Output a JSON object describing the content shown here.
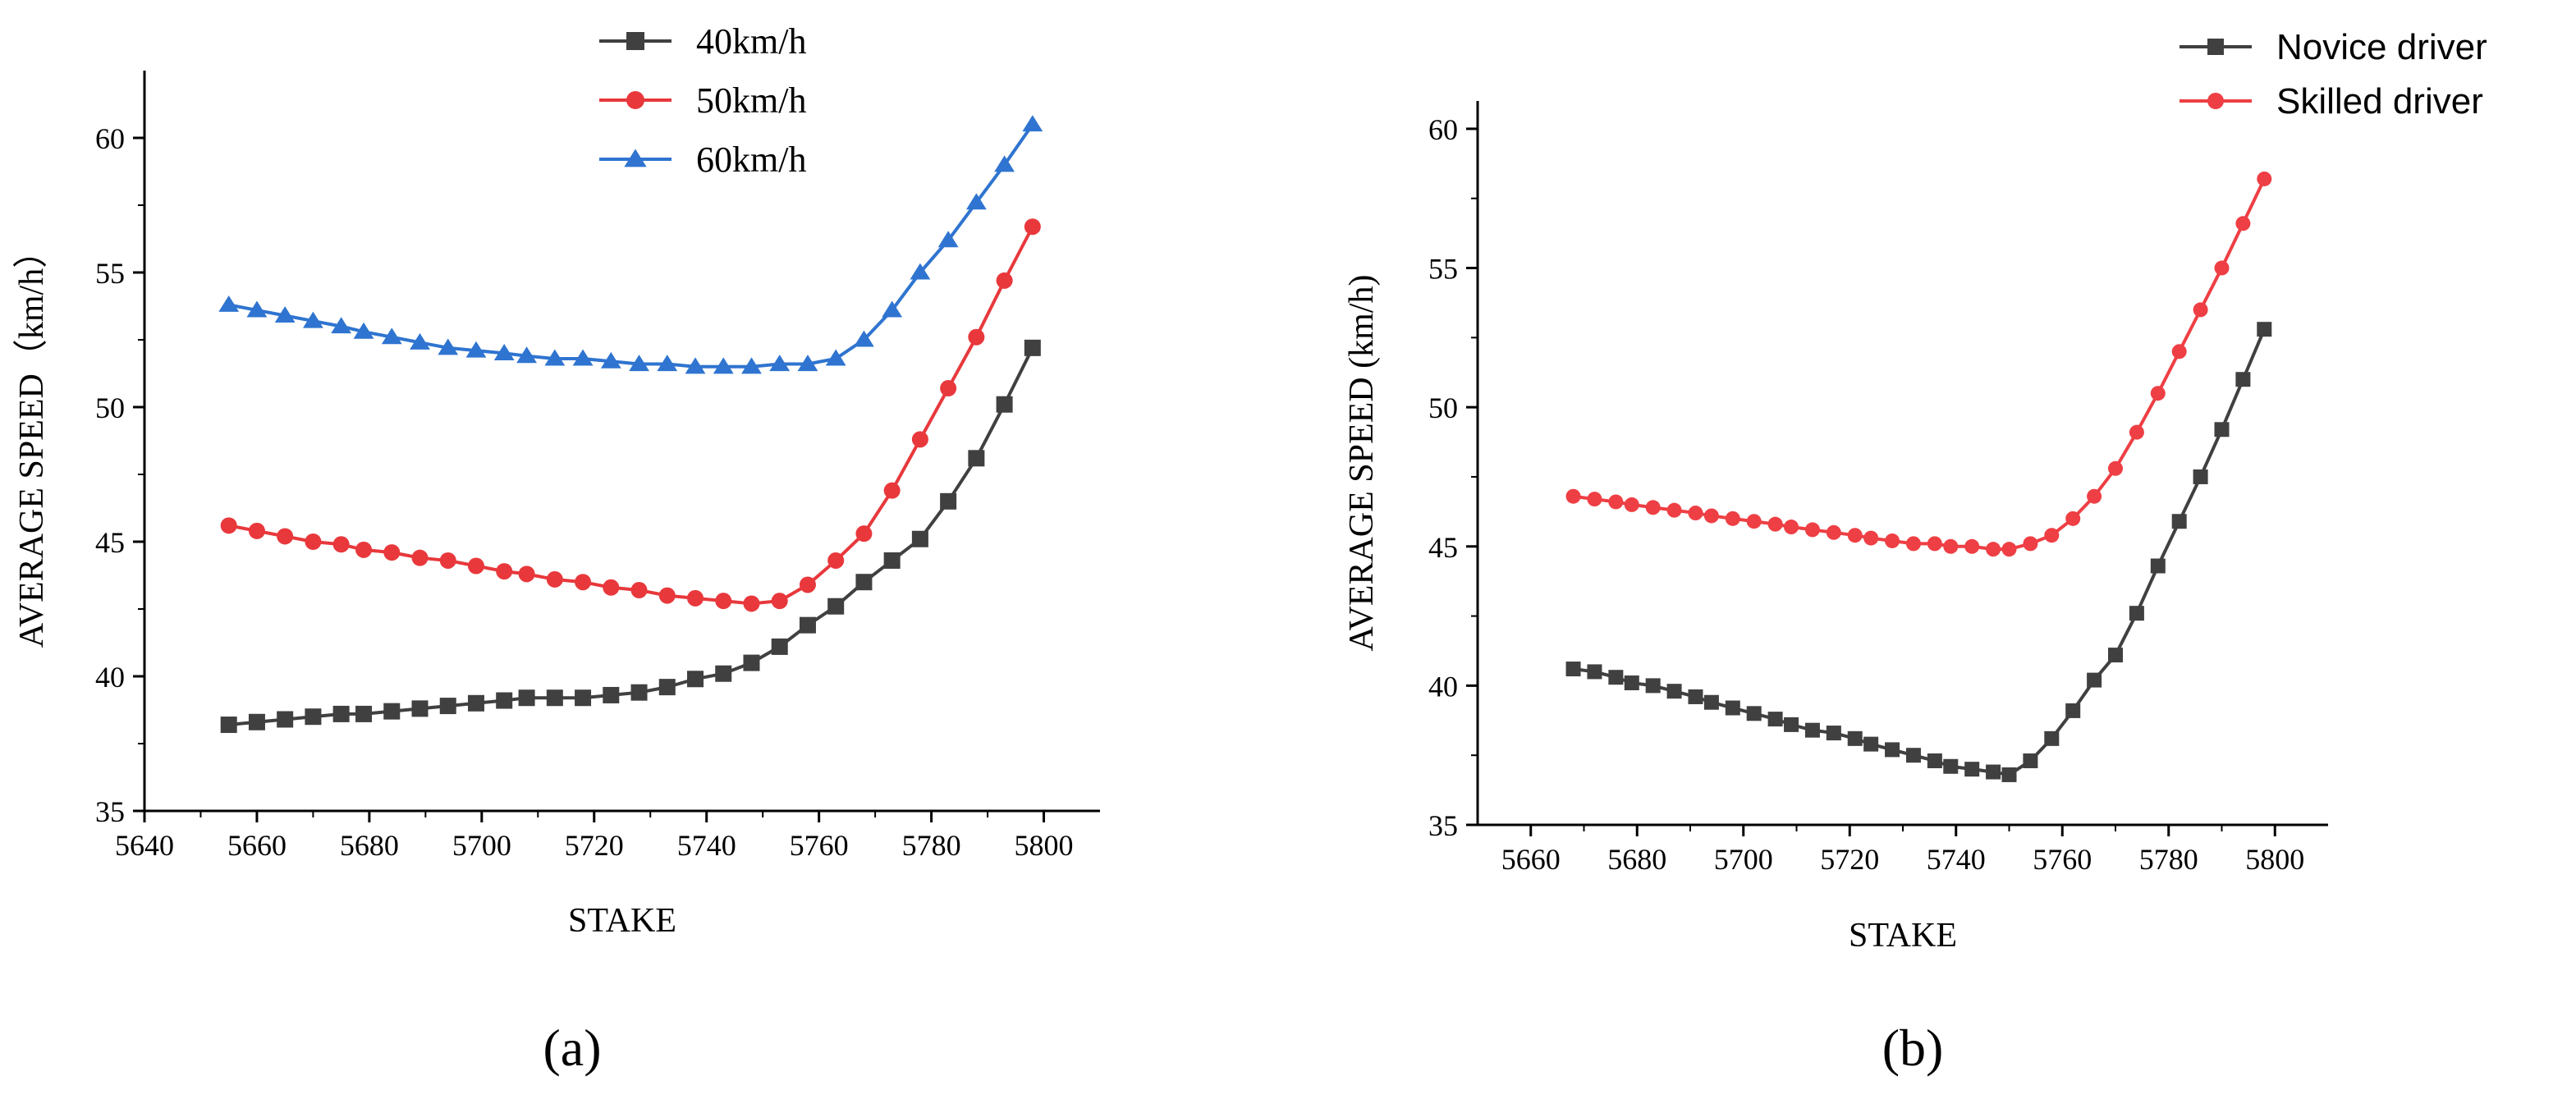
{
  "chart_data": [
    {
      "id": "a",
      "type": "line",
      "panel_label": "(a)",
      "xlabel": "STAKE",
      "ylabel": "AVERAGE SPEED（km/h）",
      "xlim": [
        5640,
        5810
      ],
      "ylim": [
        35,
        62.5
      ],
      "xticks": [
        5640,
        5660,
        5680,
        5700,
        5720,
        5740,
        5760,
        5780,
        5800
      ],
      "yticks": [
        35,
        40,
        45,
        50,
        55,
        60
      ],
      "legend_position": "top-center",
      "series": [
        {
          "name": "40km/h",
          "color": "#404040",
          "marker": "square",
          "x": [
            5655,
            5660,
            5665,
            5670,
            5675,
            5679,
            5684,
            5689,
            5694,
            5699,
            5704,
            5708,
            5713,
            5718,
            5723,
            5728,
            5733,
            5738,
            5743,
            5748,
            5753,
            5758,
            5763,
            5768,
            5773,
            5778,
            5783,
            5788,
            5793,
            5798
          ],
          "y": [
            38.2,
            38.3,
            38.4,
            38.5,
            38.6,
            38.6,
            38.7,
            38.8,
            38.9,
            39.0,
            39.1,
            39.2,
            39.2,
            39.2,
            39.3,
            39.4,
            39.6,
            39.9,
            40.1,
            40.5,
            41.1,
            41.9,
            42.6,
            43.5,
            44.3,
            45.1,
            46.5,
            48.1,
            50.1,
            52.2
          ]
        },
        {
          "name": "50km/h",
          "color": "#e8383c",
          "marker": "circle",
          "x": [
            5655,
            5660,
            5665,
            5670,
            5675,
            5679,
            5684,
            5689,
            5694,
            5699,
            5704,
            5708,
            5713,
            5718,
            5723,
            5728,
            5733,
            5738,
            5743,
            5748,
            5753,
            5758,
            5763,
            5768,
            5773,
            5778,
            5783,
            5788,
            5793,
            5798
          ],
          "y": [
            45.6,
            45.4,
            45.2,
            45.0,
            44.9,
            44.7,
            44.6,
            44.4,
            44.3,
            44.1,
            43.9,
            43.8,
            43.6,
            43.5,
            43.3,
            43.2,
            43.0,
            42.9,
            42.8,
            42.7,
            42.8,
            43.4,
            44.3,
            45.3,
            46.9,
            48.8,
            50.7,
            52.6,
            54.7,
            56.7
          ]
        },
        {
          "name": "60km/h",
          "color": "#2f74d0",
          "marker": "triangle",
          "x": [
            5655,
            5660,
            5665,
            5670,
            5675,
            5679,
            5684,
            5689,
            5694,
            5699,
            5704,
            5708,
            5713,
            5718,
            5723,
            5728,
            5733,
            5738,
            5743,
            5748,
            5753,
            5758,
            5763,
            5768,
            5773,
            5778,
            5783,
            5788,
            5793,
            5798
          ],
          "y": [
            53.8,
            53.6,
            53.4,
            53.2,
            53.0,
            52.8,
            52.6,
            52.4,
            52.2,
            52.1,
            52.0,
            51.9,
            51.8,
            51.8,
            51.7,
            51.6,
            51.6,
            51.5,
            51.5,
            51.5,
            51.6,
            51.6,
            51.8,
            52.5,
            53.6,
            55.0,
            56.2,
            57.6,
            59.0,
            60.5
          ]
        }
      ]
    },
    {
      "id": "b",
      "type": "line",
      "panel_label": "(b)",
      "xlabel": "STAKE",
      "ylabel": "AVERAGE SPEED (km/h)",
      "xlim": [
        5650,
        5810
      ],
      "ylim": [
        35,
        61
      ],
      "xticks": [
        5660,
        5680,
        5700,
        5720,
        5740,
        5760,
        5780,
        5800
      ],
      "yticks": [
        35,
        40,
        45,
        50,
        55,
        60
      ],
      "legend_position": "top-right",
      "series": [
        {
          "name": "Novice driver",
          "color": "#404040",
          "marker": "square",
          "x": [
            5668,
            5672,
            5676,
            5679,
            5683,
            5687,
            5691,
            5694,
            5698,
            5702,
            5706,
            5709,
            5713,
            5717,
            5721,
            5724,
            5728,
            5732,
            5736,
            5739,
            5743,
            5747,
            5750,
            5754,
            5758,
            5762,
            5766,
            5770,
            5774,
            5778,
            5782,
            5786,
            5790,
            5794,
            5798
          ],
          "y": [
            40.6,
            40.5,
            40.3,
            40.1,
            40.0,
            39.8,
            39.6,
            39.4,
            39.2,
            39.0,
            38.8,
            38.6,
            38.4,
            38.3,
            38.1,
            37.9,
            37.7,
            37.5,
            37.3,
            37.1,
            37.0,
            36.9,
            36.8,
            37.3,
            38.1,
            39.1,
            40.2,
            41.1,
            42.6,
            44.3,
            45.9,
            47.5,
            49.2,
            51.0,
            52.8
          ]
        },
        {
          "name": "Skilled driver",
          "color": "#ee3f44",
          "marker": "circle",
          "x": [
            5668,
            5672,
            5676,
            5679,
            5683,
            5687,
            5691,
            5694,
            5698,
            5702,
            5706,
            5709,
            5713,
            5717,
            5721,
            5724,
            5728,
            5732,
            5736,
            5739,
            5743,
            5747,
            5750,
            5754,
            5758,
            5762,
            5766,
            5770,
            5774,
            5778,
            5782,
            5786,
            5790,
            5794,
            5798
          ],
          "y": [
            46.8,
            46.7,
            46.6,
            46.5,
            46.4,
            46.3,
            46.2,
            46.1,
            46.0,
            45.9,
            45.8,
            45.7,
            45.6,
            45.5,
            45.4,
            45.3,
            45.2,
            45.1,
            45.1,
            45.0,
            45.0,
            44.9,
            44.9,
            45.1,
            45.4,
            46.0,
            46.8,
            47.8,
            49.1,
            50.5,
            52.0,
            53.5,
            55.0,
            56.6,
            58.2
          ]
        }
      ]
    }
  ]
}
